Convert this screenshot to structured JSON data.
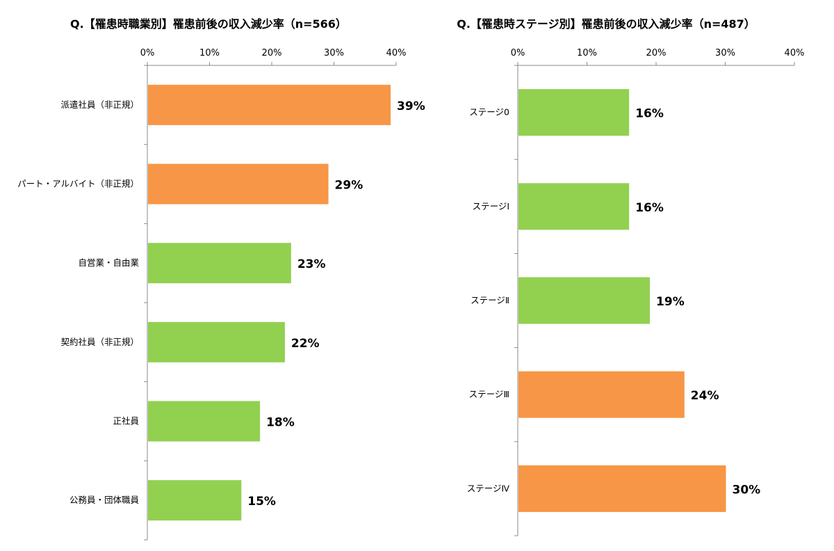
{
  "colors": {
    "orange": "#F79646",
    "green": "#92D050",
    "axis": "#8a8a8a"
  },
  "chart_data": [
    {
      "type": "bar",
      "orientation": "horizontal",
      "title": "Q.【罹患時職業別】罹患前後の収入減少率（n=566）",
      "xlim": [
        0,
        40
      ],
      "ticks": [
        "0%",
        "10%",
        "20%",
        "30%",
        "40%"
      ],
      "categories": [
        "派遣社員（非正規）",
        "パート・アルバイト（非正規）",
        "自営業・自由業",
        "契約社員（非正規）",
        "正社員",
        "公務員・団体職員"
      ],
      "values": [
        39,
        29,
        23,
        22,
        18,
        15
      ],
      "value_labels": [
        "39%",
        "29%",
        "23%",
        "22%",
        "18%",
        "15%"
      ],
      "bar_colors": [
        "orange",
        "orange",
        "green",
        "green",
        "green",
        "green"
      ],
      "grid": false
    },
    {
      "type": "bar",
      "orientation": "horizontal",
      "title": "Q.【罹患時ステージ別】罹患前後の収入減少率（n=487）",
      "xlim": [
        0,
        40
      ],
      "ticks": [
        "0%",
        "10%",
        "20%",
        "30%",
        "40%"
      ],
      "categories": [
        "ステージ0",
        "ステージⅠ",
        "ステージⅡ",
        "ステージⅢ",
        "ステージⅣ"
      ],
      "values": [
        16,
        16,
        19,
        24,
        30
      ],
      "value_labels": [
        "16%",
        "16%",
        "19%",
        "24%",
        "30%"
      ],
      "bar_colors": [
        "green",
        "green",
        "green",
        "orange",
        "orange"
      ],
      "grid": false
    }
  ]
}
